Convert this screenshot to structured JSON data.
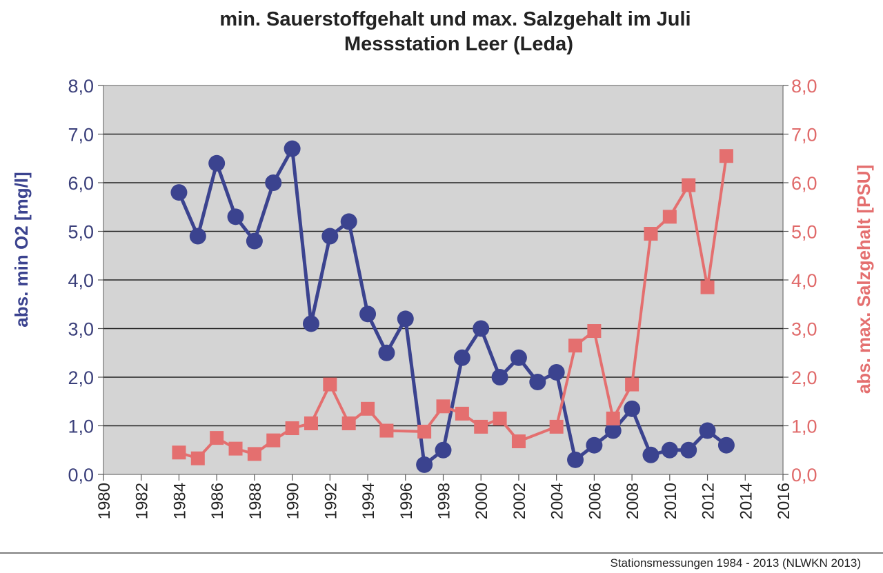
{
  "chart_data": {
    "type": "line",
    "title": "min. Sauerstoffgehalt und max. Salzgehalt im Juli",
    "subtitle": "Messstation Leer (Leda)",
    "ylabel": "abs. min O2 [mg/l]",
    "y2label": "abs. max. Salzgehalt [PSU]",
    "footer": "Stationsmessungen 1984 - 2013 (NLWKN 2013)",
    "xlim": [
      1980,
      2016
    ],
    "ylim": [
      0,
      8
    ],
    "y2lim": [
      0,
      8
    ],
    "grid": true,
    "x_ticks": [
      "1980",
      "1982",
      "1984",
      "1986",
      "1988",
      "1990",
      "1992",
      "1994",
      "1996",
      "1998",
      "2000",
      "2002",
      "2004",
      "2006",
      "2008",
      "2010",
      "2012",
      "2014",
      "2016"
    ],
    "y_ticks": [
      "0,0",
      "1,0",
      "2,0",
      "3,0",
      "4,0",
      "5,0",
      "6,0",
      "7,0",
      "8,0"
    ],
    "series": [
      {
        "axis": "left",
        "color": "#3b438f",
        "marker": "circle",
        "points": [
          {
            "x": 1984,
            "y": 5.8
          },
          {
            "x": 1985,
            "y": 4.9
          },
          {
            "x": 1986,
            "y": 6.4
          },
          {
            "x": 1987,
            "y": 5.3
          },
          {
            "x": 1988,
            "y": 4.8
          },
          {
            "x": 1989,
            "y": 6.0
          },
          {
            "x": 1990,
            "y": 6.7
          },
          {
            "x": 1991,
            "y": 3.1
          },
          {
            "x": 1992,
            "y": 4.9
          },
          {
            "x": 1993,
            "y": 5.2
          },
          {
            "x": 1994,
            "y": 3.3
          },
          {
            "x": 1995,
            "y": 2.5
          },
          {
            "x": 1996,
            "y": 3.2
          },
          {
            "x": 1997,
            "y": 0.2
          },
          {
            "x": 1998,
            "y": 0.5
          },
          {
            "x": 1999,
            "y": 2.4
          },
          {
            "x": 2000,
            "y": 3.0
          },
          {
            "x": 2001,
            "y": 2.0
          },
          {
            "x": 2002,
            "y": 2.4
          },
          {
            "x": 2003,
            "y": 1.9
          },
          {
            "x": 2004,
            "y": 2.1
          },
          {
            "x": 2005,
            "y": 0.3
          },
          {
            "x": 2006,
            "y": 0.6
          },
          {
            "x": 2007,
            "y": 0.9
          },
          {
            "x": 2008,
            "y": 1.35
          },
          {
            "x": 2009,
            "y": 0.4
          },
          {
            "x": 2010,
            "y": 0.5
          },
          {
            "x": 2011,
            "y": 0.5
          },
          {
            "x": 2012,
            "y": 0.9
          },
          {
            "x": 2013,
            "y": 0.6
          }
        ]
      },
      {
        "axis": "right",
        "color": "#e46f6f",
        "marker": "square",
        "points": [
          {
            "x": 1984,
            "y": 0.45
          },
          {
            "x": 1985,
            "y": 0.33
          },
          {
            "x": 1986,
            "y": 0.75
          },
          {
            "x": 1987,
            "y": 0.53
          },
          {
            "x": 1988,
            "y": 0.42
          },
          {
            "x": 1989,
            "y": 0.7
          },
          {
            "x": 1990,
            "y": 0.95
          },
          {
            "x": 1991,
            "y": 1.05
          },
          {
            "x": 1992,
            "y": 1.85
          },
          {
            "x": 1993,
            "y": 1.05
          },
          {
            "x": 1994,
            "y": 1.35
          },
          {
            "x": 1995,
            "y": 0.9
          },
          {
            "x": 1997,
            "y": 0.88
          },
          {
            "x": 1998,
            "y": 1.4
          },
          {
            "x": 1999,
            "y": 1.25
          },
          {
            "x": 2000,
            "y": 0.98
          },
          {
            "x": 2001,
            "y": 1.15
          },
          {
            "x": 2002,
            "y": 0.68
          },
          {
            "x": 2004,
            "y": 0.98
          },
          {
            "x": 2005,
            "y": 2.65
          },
          {
            "x": 2006,
            "y": 2.95
          },
          {
            "x": 2007,
            "y": 1.15
          },
          {
            "x": 2008,
            "y": 1.85
          },
          {
            "x": 2009,
            "y": 4.95
          },
          {
            "x": 2010,
            "y": 5.3
          },
          {
            "x": 2011,
            "y": 5.95
          },
          {
            "x": 2012,
            "y": 3.85
          },
          {
            "x": 2013,
            "y": 6.55
          }
        ]
      }
    ]
  }
}
